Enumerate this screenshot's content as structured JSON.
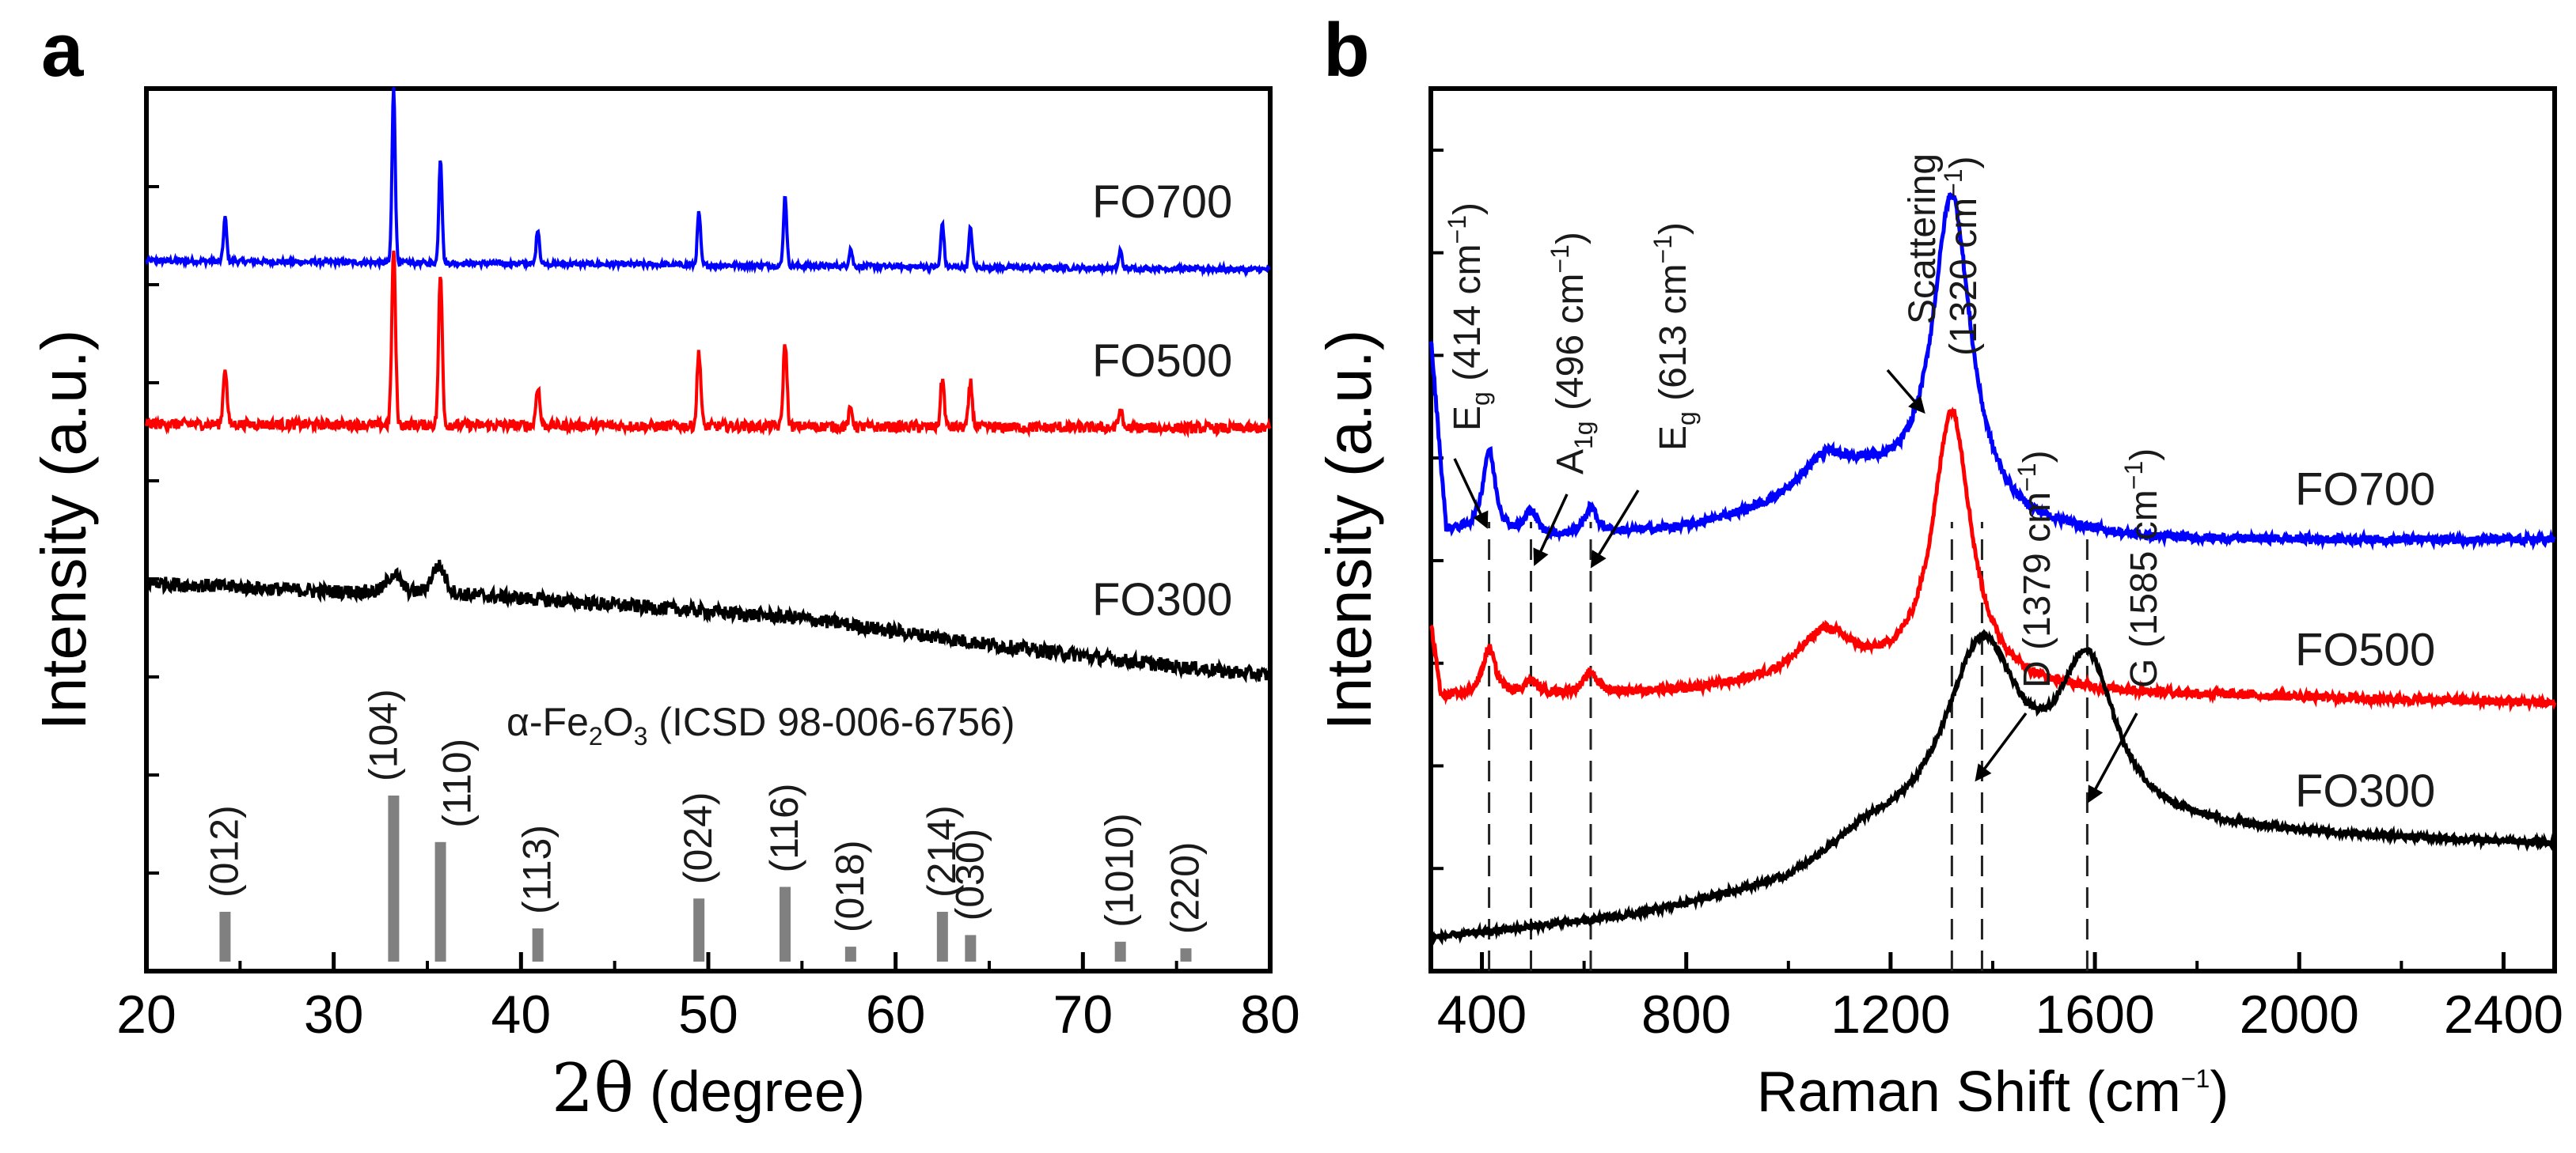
{
  "chart_data": [
    {
      "panel": "a",
      "type": "line",
      "xlabel_symbol": "2θ",
      "xlabel_unit": "(degree)",
      "ylabel": "Intensity (a.u.)",
      "xlim": [
        20,
        80
      ],
      "xticks": [
        20,
        30,
        40,
        50,
        60,
        70,
        80
      ],
      "grid": false,
      "series": [
        {
          "name": "FO700",
          "color": "#0000ff",
          "baseline": [
            [
              20,
              0.805
            ],
            [
              80,
              0.795
            ]
          ],
          "noise": 0.003,
          "peaks": [
            [
              24.2,
              0.05
            ],
            [
              33.2,
              0.2
            ],
            [
              35.7,
              0.12
            ],
            [
              40.9,
              0.04
            ],
            [
              49.5,
              0.06
            ],
            [
              54.1,
              0.08
            ],
            [
              57.6,
              0.02
            ],
            [
              62.5,
              0.05
            ],
            [
              64.0,
              0.045
            ],
            [
              72.0,
              0.02
            ]
          ],
          "peak_width": 0.12
        },
        {
          "name": "FO500",
          "color": "#ff0000",
          "baseline": [
            [
              20,
              0.62
            ],
            [
              80,
              0.615
            ]
          ],
          "noise": 0.006,
          "peaks": [
            [
              24.2,
              0.065
            ],
            [
              33.2,
              0.2
            ],
            [
              35.7,
              0.17
            ],
            [
              40.9,
              0.045
            ],
            [
              49.5,
              0.085
            ],
            [
              54.1,
              0.095
            ],
            [
              57.6,
              0.02
            ],
            [
              62.5,
              0.055
            ],
            [
              64.0,
              0.05
            ],
            [
              72.0,
              0.02
            ]
          ],
          "peak_width": 0.14
        },
        {
          "name": "FO300",
          "color": "#000000",
          "baseline": [
            [
              20,
              0.44
            ],
            [
              30,
              0.43
            ],
            [
              35,
              0.43
            ],
            [
              45,
              0.415
            ],
            [
              55,
              0.4
            ],
            [
              65,
              0.37
            ],
            [
              75,
              0.345
            ],
            [
              80,
              0.335
            ]
          ],
          "noise": 0.008,
          "peaks": [
            [
              33.2,
              0.02
            ],
            [
              35.6,
              0.03
            ]
          ],
          "peak_width": 0.5
        }
      ],
      "reference": {
        "label_prefix": "α-Fe",
        "label_sub1": "2",
        "label_mid": "O",
        "label_sub2": "3",
        "label_suffix": "  (ICSD 98-006-6756)",
        "color": "#808080",
        "bars": [
          {
            "x": 24.2,
            "intensity": 0.3,
            "hkl": "(012)"
          },
          {
            "x": 33.2,
            "intensity": 1.0,
            "hkl": "(104)"
          },
          {
            "x": 35.7,
            "intensity": 0.72,
            "hkl": "(110)"
          },
          {
            "x": 40.9,
            "intensity": 0.2,
            "hkl": "(113)"
          },
          {
            "x": 49.5,
            "intensity": 0.38,
            "hkl": "(024)"
          },
          {
            "x": 54.1,
            "intensity": 0.45,
            "hkl": "(116)"
          },
          {
            "x": 57.6,
            "intensity": 0.09,
            "hkl": "(018)"
          },
          {
            "x": 62.5,
            "intensity": 0.3,
            "hkl": "(214)"
          },
          {
            "x": 64.0,
            "intensity": 0.16,
            "hkl": "(030)"
          },
          {
            "x": 72.0,
            "intensity": 0.12,
            "hkl": "(1010)"
          },
          {
            "x": 75.5,
            "intensity": 0.08,
            "hkl": "(220)"
          }
        ]
      }
    },
    {
      "panel": "b",
      "type": "line",
      "xlabel": "Raman Shift (cm",
      "xlabel_sup": "−1",
      "xlabel_close": ")",
      "ylabel": "Intensity (a.u.)",
      "xlim": [
        300,
        2500
      ],
      "xticks": [
        400,
        800,
        1200,
        1600,
        2000,
        2400
      ],
      "grid": false,
      "series": [
        {
          "name": "FO700",
          "color": "#0000ff",
          "baseline": [
            [
              300,
              0.4
            ],
            [
              500,
              0.39
            ],
            [
              800,
              0.4
            ],
            [
              1000,
              0.42
            ],
            [
              1150,
              0.44
            ],
            [
              1450,
              0.4
            ],
            [
              1700,
              0.39
            ],
            [
              2500,
              0.39
            ]
          ],
          "noise": 0.004,
          "peaks": [
            [
              414,
              0.08,
              15
            ],
            [
              496,
              0.025,
              15
            ],
            [
              613,
              0.025,
              15
            ],
            [
              1320,
              0.3,
              45
            ],
            [
              1070,
              0.035,
              60
            ]
          ]
        },
        {
          "name": "FO500",
          "color": "#ff0000",
          "baseline": [
            [
              300,
              0.24
            ],
            [
              800,
              0.245
            ],
            [
              1100,
              0.26
            ],
            [
              1500,
              0.245
            ],
            [
              2500,
              0.235
            ]
          ],
          "noise": 0.004,
          "peaks": [
            [
              414,
              0.045,
              15
            ],
            [
              496,
              0.012,
              15
            ],
            [
              613,
              0.02,
              15
            ],
            [
              1320,
              0.26,
              45
            ],
            [
              1070,
              0.04,
              60
            ]
          ]
        },
        {
          "name": "FO300",
          "color": "#000000",
          "baseline": [
            [
              300,
              0.01
            ],
            [
              700,
              0.03
            ],
            [
              1000,
              0.06
            ],
            [
              1150,
              0.1
            ],
            [
              1800,
              0.11
            ],
            [
              2500,
              0.1
            ]
          ],
          "noise": 0.003,
          "peaks": [
            [
              1379,
              0.18,
              90
            ],
            [
              1585,
              0.15,
              70
            ]
          ]
        }
      ],
      "annotations": [
        {
          "text_main": "E",
          "text_sub": "g",
          "text_rest": " (414 cm",
          "text_sup": "−1",
          "text_close": ")",
          "x": 414
        },
        {
          "text_main": "A",
          "text_sub": "1g",
          "text_rest": " (496 cm",
          "text_sup": "−1",
          "text_close": ")",
          "x": 496
        },
        {
          "text_main": "E",
          "text_sub": "g",
          "text_rest": " (613 cm",
          "text_sup": "−1",
          "text_close": ")",
          "x": 613
        },
        {
          "text_line1": "Scattering",
          "text_rest": "(1320 cm",
          "text_sup": "−1",
          "text_close": ")",
          "x": 1320
        },
        {
          "text_main": "D",
          "text_sub": "",
          "text_rest": " (1379 cm",
          "text_sup": "−1",
          "text_close": ")",
          "x": 1379
        },
        {
          "text_main": "G",
          "text_sub": "",
          "text_rest": " (1585 cm",
          "text_sup": "−1",
          "text_close": ")",
          "x": 1585
        }
      ]
    }
  ],
  "panel_letters": {
    "a": "a",
    "b": "b"
  }
}
